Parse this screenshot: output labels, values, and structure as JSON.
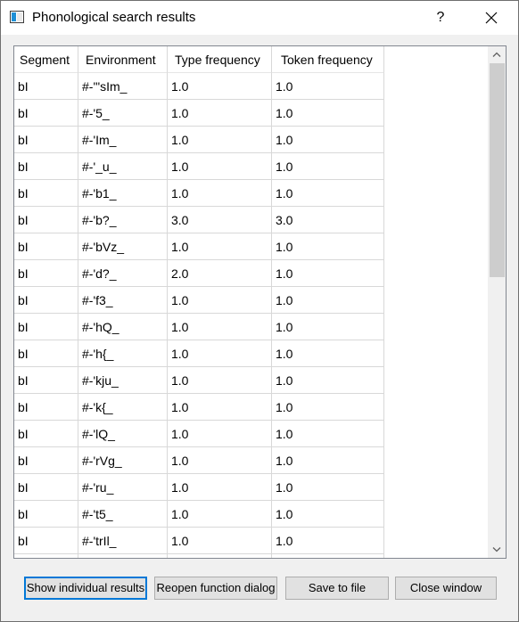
{
  "window": {
    "title": "Phonological search results",
    "help_glyph": "?"
  },
  "table": {
    "columns": [
      "Segment",
      "Environment",
      "Type frequency",
      "Token frequency"
    ],
    "sort_indicator": "﹀",
    "rows": [
      [
        "bI",
        "#-'\"sIm_",
        "1.0",
        "1.0"
      ],
      [
        "bI",
        "#-'5_",
        "1.0",
        "1.0"
      ],
      [
        "bI",
        "#-'Im_",
        "1.0",
        "1.0"
      ],
      [
        "bI",
        "#-'_u_",
        "1.0",
        "1.0"
      ],
      [
        "bI",
        "#-'b1_",
        "1.0",
        "1.0"
      ],
      [
        "bI",
        "#-'b?_",
        "3.0",
        "3.0"
      ],
      [
        "bI",
        "#-'bVz_",
        "1.0",
        "1.0"
      ],
      [
        "bI",
        "#-'d?_",
        "2.0",
        "1.0"
      ],
      [
        "bI",
        "#-'f3_",
        "1.0",
        "1.0"
      ],
      [
        "bI",
        "#-'hQ_",
        "1.0",
        "1.0"
      ],
      [
        "bI",
        "#-'h{_",
        "1.0",
        "1.0"
      ],
      [
        "bI",
        "#-'kju_",
        "1.0",
        "1.0"
      ],
      [
        "bI",
        "#-'k{_",
        "1.0",
        "1.0"
      ],
      [
        "bI",
        "#-'lQ_",
        "1.0",
        "1.0"
      ],
      [
        "bI",
        "#-'rVg_",
        "1.0",
        "1.0"
      ],
      [
        "bI",
        "#-'ru_",
        "1.0",
        "1.0"
      ],
      [
        "bI",
        "#-'t5_",
        "1.0",
        "1.0"
      ],
      [
        "bI",
        "#-'trIl_",
        "1.0",
        "1.0"
      ],
      [
        "",
        "",
        "",
        ""
      ]
    ]
  },
  "buttons": {
    "show_individual": "Show individual results",
    "reopen": "Reopen function dialog",
    "save": "Save to file",
    "close_window": "Close window"
  },
  "colors": {
    "accent": "#0078d7",
    "scroll_thumb": "#cdcdcd",
    "grid_line": "#d8d8d8"
  }
}
